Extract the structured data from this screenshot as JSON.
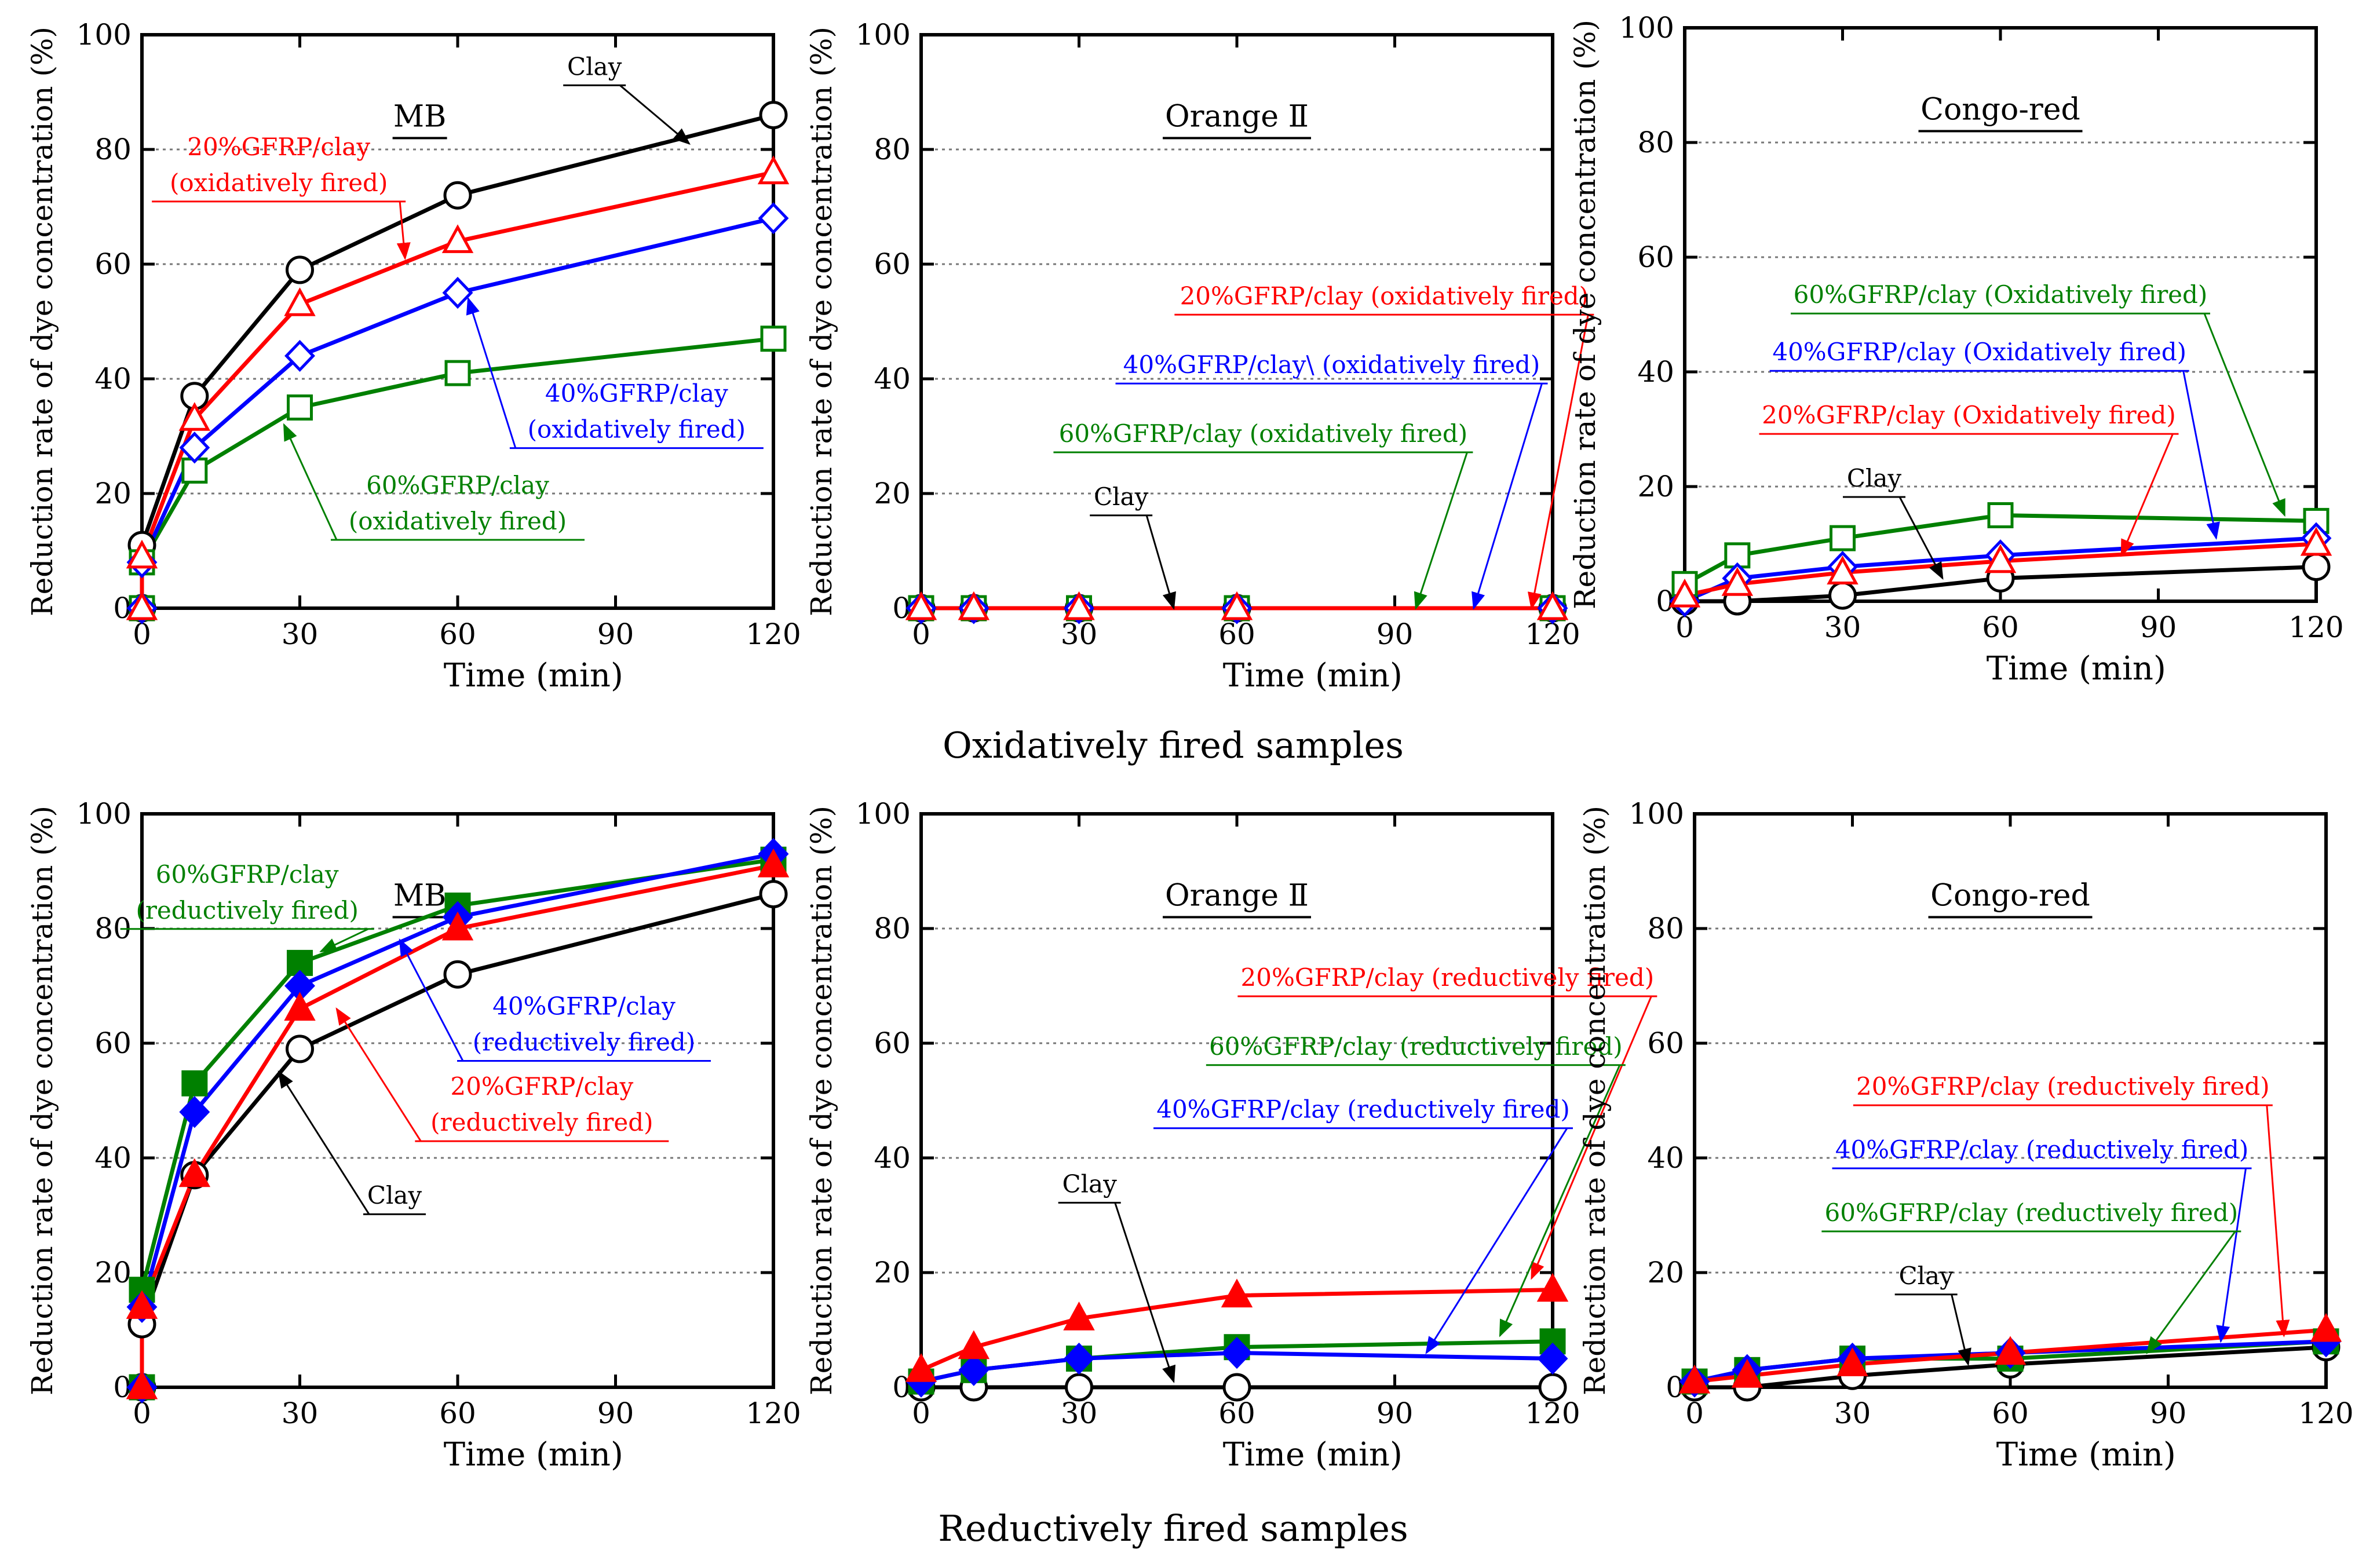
{
  "figure": {
    "row_titles": [
      "Oxidatively fired samples",
      "Reductively fired samples"
    ],
    "colors": {
      "clay": "#000000",
      "g20": "#ff0000",
      "g40": "#0000ff",
      "g60": "#008000",
      "grid": "#777777"
    }
  },
  "chart_data": [
    {
      "type": "line",
      "title": "MB",
      "xlabel": "Time (min)",
      "ylabel": "Reduction rate of dye concentration (%)",
      "xlim": [
        0,
        120
      ],
      "ylim": [
        0,
        100
      ],
      "xticks": [
        0,
        30,
        60,
        90,
        120
      ],
      "yticks": [
        0,
        20,
        40,
        60,
        80,
        100
      ],
      "grid": "horizontal dotted",
      "marker_style": "open",
      "series": [
        {
          "key": "clay",
          "name": "Clay",
          "x": [
            0,
            0,
            10,
            30,
            60,
            120
          ],
          "values": [
            0,
            11,
            37,
            59,
            72,
            86
          ]
        },
        {
          "key": "g20",
          "name": "20%GFRP/clay (oxidatively fired)",
          "x": [
            0,
            0,
            10,
            30,
            60,
            120
          ],
          "values": [
            0,
            9,
            33,
            53,
            64,
            76
          ]
        },
        {
          "key": "g40",
          "name": "40%GFRP/clay (oxidatively fired)",
          "x": [
            0,
            0,
            10,
            30,
            60,
            120
          ],
          "values": [
            0,
            8,
            28,
            44,
            55,
            68
          ]
        },
        {
          "key": "g60",
          "name": "60%GFRP/clay (oxidatively fired)",
          "x": [
            0,
            0,
            10,
            30,
            60,
            120
          ],
          "values": [
            0,
            8,
            24,
            35,
            41,
            47
          ]
        }
      ],
      "annotations": [
        {
          "series": "clay",
          "lines": [
            "Clay"
          ],
          "tx": 86,
          "ty": 93,
          "ax": 104,
          "ay": 81
        },
        {
          "series": "g20",
          "lines": [
            "20%GFRP/clay",
            "(oxidatively fired)"
          ],
          "tx": 26,
          "ty": 79,
          "ax": 50,
          "ay": 61
        },
        {
          "series": "g40",
          "lines": [
            "40%GFRP/clay",
            "(oxidatively fired)"
          ],
          "tx": 94,
          "ty": 36,
          "ax": 62,
          "ay": 54
        },
        {
          "series": "g60",
          "lines": [
            "60%GFRP/clay",
            "(oxidatively fired)"
          ],
          "tx": 60,
          "ty": 20,
          "ax": 27,
          "ay": 32
        }
      ]
    },
    {
      "type": "line",
      "title": "Orange Ⅱ",
      "xlabel": "Time (min)",
      "ylabel": "Reduction rate of dye concentration (%)",
      "xlim": [
        0,
        120
      ],
      "ylim": [
        0,
        100
      ],
      "xticks": [
        0,
        30,
        60,
        90,
        120
      ],
      "yticks": [
        0,
        20,
        40,
        60,
        80,
        100
      ],
      "grid": "horizontal dotted",
      "marker_style": "open",
      "series": [
        {
          "key": "clay",
          "name": "Clay",
          "x": [
            0,
            10,
            30,
            60,
            120
          ],
          "values": [
            0,
            0,
            0,
            0,
            0
          ]
        },
        {
          "key": "g60",
          "name": "60%GFRP/clay (oxidatively fired)",
          "x": [
            0,
            10,
            30,
            60,
            120
          ],
          "values": [
            0,
            0,
            0,
            0,
            0
          ]
        },
        {
          "key": "g40",
          "name": "40%GFRP/clay\\ (oxidatively fired)",
          "x": [
            0,
            10,
            30,
            60,
            120
          ],
          "values": [
            0,
            0,
            0,
            0,
            0
          ]
        },
        {
          "key": "g20",
          "name": "20%GFRP/clay (oxidatively fired)",
          "x": [
            0,
            10,
            30,
            60,
            120
          ],
          "values": [
            0,
            0,
            0,
            0,
            0
          ]
        }
      ],
      "annotations": [
        {
          "series": "g20",
          "lines": [
            "20%GFRP/clay (oxidatively fired)"
          ],
          "tx": 88,
          "ty": 53,
          "ax": 116,
          "ay": 0
        },
        {
          "series": "g40",
          "lines": [
            "40%GFRP/clay\\ (oxidatively fired)"
          ],
          "tx": 78,
          "ty": 41,
          "ax": 105,
          "ay": 0
        },
        {
          "series": "g60",
          "lines": [
            "60%GFRP/clay (oxidatively fired)"
          ],
          "tx": 65,
          "ty": 29,
          "ax": 94,
          "ay": 0
        },
        {
          "series": "clay",
          "lines": [
            "Clay"
          ],
          "tx": 38,
          "ty": 18,
          "ax": 48,
          "ay": 0
        }
      ]
    },
    {
      "type": "line",
      "title": "Congo-red",
      "xlabel": "Time (min)",
      "ylabel": "Reduction rate of dye concentration (%)",
      "xlim": [
        0,
        120
      ],
      "ylim": [
        0,
        100
      ],
      "xticks": [
        0,
        30,
        60,
        90,
        120
      ],
      "yticks": [
        0,
        20,
        40,
        60,
        80,
        100
      ],
      "grid": "horizontal dotted",
      "marker_style": "open",
      "series": [
        {
          "key": "clay",
          "name": "Clay",
          "x": [
            0,
            10,
            30,
            60,
            120
          ],
          "values": [
            0,
            0,
            1,
            4,
            6
          ]
        },
        {
          "key": "g20",
          "name": "20%GFRP/clay (Oxidatively fired)",
          "x": [
            0,
            10,
            30,
            60,
            120
          ],
          "values": [
            1,
            3,
            5,
            7,
            10
          ]
        },
        {
          "key": "g40",
          "name": "40%GFRP/clay (Oxidatively fired)",
          "x": [
            0,
            10,
            30,
            60,
            120
          ],
          "values": [
            0,
            4,
            6,
            8,
            11
          ]
        },
        {
          "key": "g60",
          "name": "60%GFRP/clay (Oxidatively fired)",
          "x": [
            0,
            10,
            30,
            60,
            120
          ],
          "values": [
            3,
            8,
            11,
            15,
            14
          ]
        }
      ],
      "annotations": [
        {
          "series": "g60",
          "lines": [
            "60%GFRP/clay (Oxidatively fired)"
          ],
          "tx": 60,
          "ty": 52,
          "ax": 114,
          "ay": 15
        },
        {
          "series": "g40",
          "lines": [
            "40%GFRP/clay (Oxidatively fired)"
          ],
          "tx": 56,
          "ty": 42,
          "ax": 101,
          "ay": 11
        },
        {
          "series": "g20",
          "lines": [
            "20%GFRP/clay (Oxidatively fired)"
          ],
          "tx": 54,
          "ty": 31,
          "ax": 83,
          "ay": 8
        },
        {
          "series": "clay",
          "lines": [
            "Clay"
          ],
          "tx": 36,
          "ty": 20,
          "ax": 49,
          "ay": 4
        }
      ]
    },
    {
      "type": "line",
      "title": "MB",
      "xlabel": "Time (min)",
      "ylabel": "Reduction rate of dye concentration (%)",
      "xlim": [
        0,
        120
      ],
      "ylim": [
        0,
        100
      ],
      "xticks": [
        0,
        30,
        60,
        90,
        120
      ],
      "yticks": [
        0,
        20,
        40,
        60,
        80,
        100
      ],
      "grid": "horizontal dotted",
      "marker_style": "filled",
      "series": [
        {
          "key": "clay",
          "name": "Clay",
          "x": [
            0,
            0,
            10,
            30,
            60,
            120
          ],
          "values": [
            0,
            11,
            37,
            59,
            72,
            86
          ]
        },
        {
          "key": "g20",
          "name": "20%GFRP/clay (reductively fired)",
          "x": [
            0,
            0,
            10,
            30,
            60,
            120
          ],
          "values": [
            0,
            14,
            37,
            66,
            80,
            91
          ]
        },
        {
          "key": "g40",
          "name": "40%GFRP/clay (reductively fired)",
          "x": [
            0,
            0,
            10,
            30,
            60,
            120
          ],
          "values": [
            0,
            14,
            48,
            70,
            82,
            93
          ]
        },
        {
          "key": "g60",
          "name": "60%GFRP/clay (reductively fired)",
          "x": [
            0,
            0,
            10,
            30,
            60,
            120
          ],
          "values": [
            0,
            17,
            53,
            74,
            84,
            92
          ]
        }
      ],
      "annotations": [
        {
          "series": "g60",
          "lines": [
            "60%GFRP/clay",
            "(reductively fired)"
          ],
          "tx": 20,
          "ty": 88,
          "ax": 34,
          "ay": 76
        },
        {
          "series": "g40",
          "lines": [
            "40%GFRP/clay",
            "(reductively fired)"
          ],
          "tx": 84,
          "ty": 65,
          "ax": 49,
          "ay": 78
        },
        {
          "series": "g20",
          "lines": [
            "20%GFRP/clay",
            "(reductively fired)"
          ],
          "tx": 76,
          "ty": 51,
          "ax": 37,
          "ay": 66
        },
        {
          "series": "clay",
          "lines": [
            "Clay"
          ],
          "tx": 48,
          "ty": 32,
          "ax": 26,
          "ay": 55
        }
      ]
    },
    {
      "type": "line",
      "title": "Orange Ⅱ",
      "xlabel": "Time (min)",
      "ylabel": "Reduction rate of dye concentration (%)",
      "xlim": [
        0,
        120
      ],
      "ylim": [
        0,
        100
      ],
      "xticks": [
        0,
        30,
        60,
        90,
        120
      ],
      "yticks": [
        0,
        20,
        40,
        60,
        80,
        100
      ],
      "grid": "horizontal dotted",
      "marker_style": "filled",
      "series": [
        {
          "key": "clay",
          "name": "Clay",
          "x": [
            0,
            10,
            30,
            60,
            120
          ],
          "values": [
            0,
            0,
            0,
            0,
            0
          ]
        },
        {
          "key": "g40",
          "name": "40%GFRP/clay (reductively fired)",
          "x": [
            0,
            10,
            30,
            60,
            120
          ],
          "values": [
            1,
            3,
            5,
            6,
            5
          ]
        },
        {
          "key": "g60",
          "name": "60%GFRP/clay (reductively fired)",
          "x": [
            0,
            10,
            30,
            60,
            120
          ],
          "values": [
            1,
            3,
            5,
            7,
            8
          ]
        },
        {
          "key": "g20",
          "name": "20%GFRP/clay (reductively fired)",
          "x": [
            0,
            10,
            30,
            60,
            120
          ],
          "values": [
            3,
            7,
            12,
            16,
            17
          ]
        }
      ],
      "annotations": [
        {
          "series": "g20",
          "lines": [
            "20%GFRP/clay (reductively fired)"
          ],
          "tx": 100,
          "ty": 70,
          "ax": 116,
          "ay": 19
        },
        {
          "series": "g60",
          "lines": [
            "60%GFRP/clay (reductively fired)"
          ],
          "tx": 94,
          "ty": 58,
          "ax": 110,
          "ay": 9
        },
        {
          "series": "g40",
          "lines": [
            "40%GFRP/clay (reductively fired)"
          ],
          "tx": 84,
          "ty": 47,
          "ax": 96,
          "ay": 6
        },
        {
          "series": "clay",
          "lines": [
            "Clay"
          ],
          "tx": 32,
          "ty": 34,
          "ax": 48,
          "ay": 1
        }
      ]
    },
    {
      "type": "line",
      "title": "Congo-red",
      "xlabel": "Time (min)",
      "ylabel": "Reduction rate of dye concentration (%)",
      "xlim": [
        0,
        120
      ],
      "ylim": [
        0,
        100
      ],
      "xticks": [
        0,
        30,
        60,
        90,
        120
      ],
      "yticks": [
        0,
        20,
        40,
        60,
        80,
        100
      ],
      "grid": "horizontal dotted",
      "marker_style": "filled",
      "series": [
        {
          "key": "clay",
          "name": "Clay",
          "x": [
            0,
            10,
            30,
            60,
            120
          ],
          "values": [
            0,
            0,
            2,
            4,
            7
          ]
        },
        {
          "key": "g60",
          "name": "60%GFRP/clay (reductively fired)",
          "x": [
            0,
            10,
            30,
            60,
            120
          ],
          "values": [
            1,
            3,
            5,
            5,
            8
          ]
        },
        {
          "key": "g40",
          "name": "40%GFRP/clay (reductively fired)",
          "x": [
            0,
            10,
            30,
            60,
            120
          ],
          "values": [
            1,
            3,
            5,
            6,
            8
          ]
        },
        {
          "key": "g20",
          "name": "20%GFRP/clay (reductively fired)",
          "x": [
            0,
            10,
            30,
            60,
            120
          ],
          "values": [
            1,
            2,
            4,
            6,
            10
          ]
        }
      ],
      "annotations": [
        {
          "series": "g20",
          "lines": [
            "20%GFRP/clay (reductively fired)"
          ],
          "tx": 70,
          "ty": 51,
          "ax": 112,
          "ay": 9
        },
        {
          "series": "g40",
          "lines": [
            "40%GFRP/clay (reductively fired)"
          ],
          "tx": 66,
          "ty": 40,
          "ax": 100,
          "ay": 8
        },
        {
          "series": "g60",
          "lines": [
            "60%GFRP/clay (reductively fired)"
          ],
          "tx": 64,
          "ty": 29,
          "ax": 86,
          "ay": 6
        },
        {
          "series": "clay",
          "lines": [
            "Clay"
          ],
          "tx": 44,
          "ty": 18,
          "ax": 52,
          "ay": 4
        }
      ]
    }
  ]
}
